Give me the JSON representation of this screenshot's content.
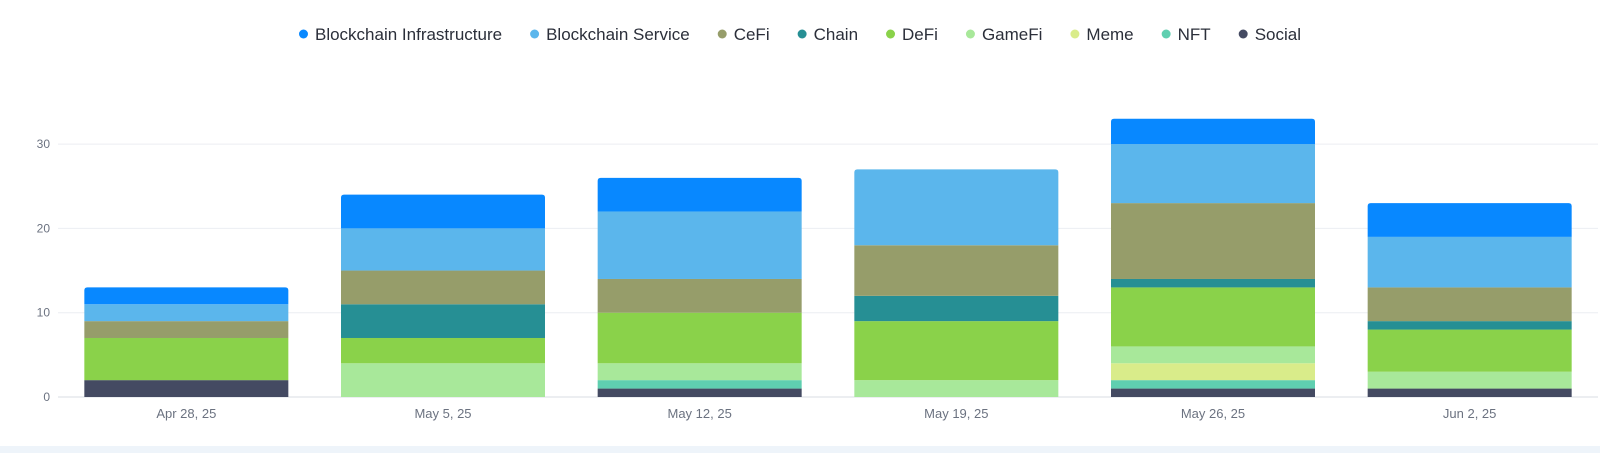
{
  "chart_data": {
    "type": "bar",
    "stacked": true,
    "title": "",
    "xlabel": "",
    "ylabel": "",
    "ylim": [
      0,
      35
    ],
    "yticks": [
      0,
      10,
      20,
      30
    ],
    "grid": true,
    "legend_position": "top-center",
    "categories": [
      "Apr 28, 25",
      "May 5, 25",
      "May 12, 25",
      "May 19, 25",
      "May 26, 25",
      "Jun 2, 25"
    ],
    "series": [
      {
        "name": "Social",
        "color": "#444a62",
        "values": [
          2,
          0,
          1,
          0,
          1,
          1
        ]
      },
      {
        "name": "NFT",
        "color": "#5fcfb0",
        "values": [
          0,
          0,
          1,
          0,
          1,
          0
        ]
      },
      {
        "name": "Meme",
        "color": "#d9ec8a",
        "values": [
          0,
          0,
          0,
          0,
          2,
          0
        ]
      },
      {
        "name": "GameFi",
        "color": "#a8e89a",
        "values": [
          0,
          4,
          2,
          2,
          2,
          2
        ]
      },
      {
        "name": "DeFi",
        "color": "#8ad24a",
        "values": [
          5,
          3,
          6,
          7,
          7,
          5
        ]
      },
      {
        "name": "Chain",
        "color": "#268f94",
        "values": [
          0,
          4,
          0,
          3,
          1,
          1
        ]
      },
      {
        "name": "CeFi",
        "color": "#969d6a",
        "values": [
          2,
          4,
          4,
          6,
          9,
          4
        ]
      },
      {
        "name": "Blockchain Service",
        "color": "#5bb6ec",
        "values": [
          2,
          5,
          8,
          9,
          7,
          6
        ]
      },
      {
        "name": "Blockchain Infrastructure",
        "color": "#0888ff",
        "values": [
          2,
          4,
          4,
          0,
          3,
          4
        ]
      }
    ],
    "legend_order": [
      "Blockchain Infrastructure",
      "Blockchain Service",
      "CeFi",
      "Chain",
      "DeFi",
      "GameFi",
      "Meme",
      "NFT",
      "Social"
    ]
  }
}
